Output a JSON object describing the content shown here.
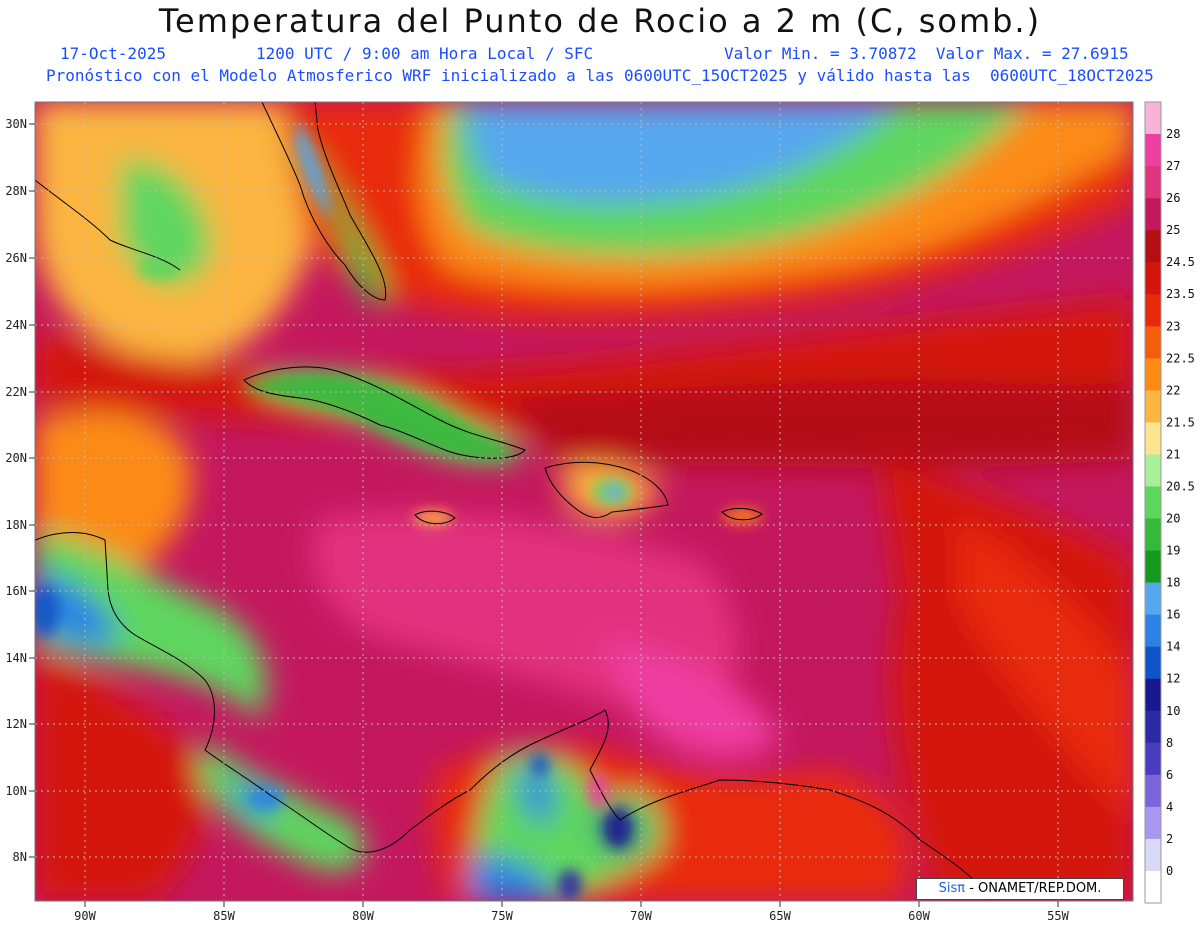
{
  "header": {
    "title": "Temperatura del Punto de Rocio a 2 m (C, somb.)",
    "date": "17-Oct-2025",
    "time": "1200 UTC / 9:00 am Hora Local / SFC",
    "minmax": "Valor Min. = 3.70872  Valor Max. = 27.6915",
    "model": "Pronóstico con el Modelo Atmosferico WRF inicializado a las 0600UTC_15OCT2025 y válido hasta las  0600UTC_18OCT2025"
  },
  "axes": {
    "lon_ticks": [
      "90W",
      "85W",
      "80W",
      "75W",
      "70W",
      "65W",
      "60W",
      "55W"
    ],
    "lat_ticks": [
      "30N",
      "28N",
      "26N",
      "24N",
      "22N",
      "20N",
      "18N",
      "16N",
      "14N",
      "12N",
      "10N",
      "8N"
    ]
  },
  "colorbar": {
    "labels": [
      "28",
      "27",
      "26",
      "25",
      "24.5",
      "23.5",
      "23",
      "22.5",
      "22",
      "21.5",
      "21",
      "20.5",
      "20",
      "19",
      "18",
      "16",
      "14",
      "12",
      "10",
      "8",
      "6",
      "4",
      "2",
      "0"
    ],
    "colors": [
      "#f7b3d8",
      "#ee3ea0",
      "#e2337f",
      "#c4185e",
      "#b50f14",
      "#d4140f",
      "#e8290c",
      "#f55c0c",
      "#fb8b12",
      "#fbb540",
      "#fde590",
      "#a9ef9a",
      "#5ed65e",
      "#36b83a",
      "#159a1e",
      "#57a7ee",
      "#2b82e4",
      "#1055c8",
      "#1a1890",
      "#2a2aa6",
      "#4a3cbf",
      "#7a66da",
      "#a797ee",
      "#d8d8f7",
      "#ffffff"
    ]
  },
  "credit": {
    "brand": "Sisπ",
    "text": " - ONAMET/REP.DOM."
  },
  "colors": {
    "title": "#111111",
    "subtitle": "#1a4dff"
  }
}
